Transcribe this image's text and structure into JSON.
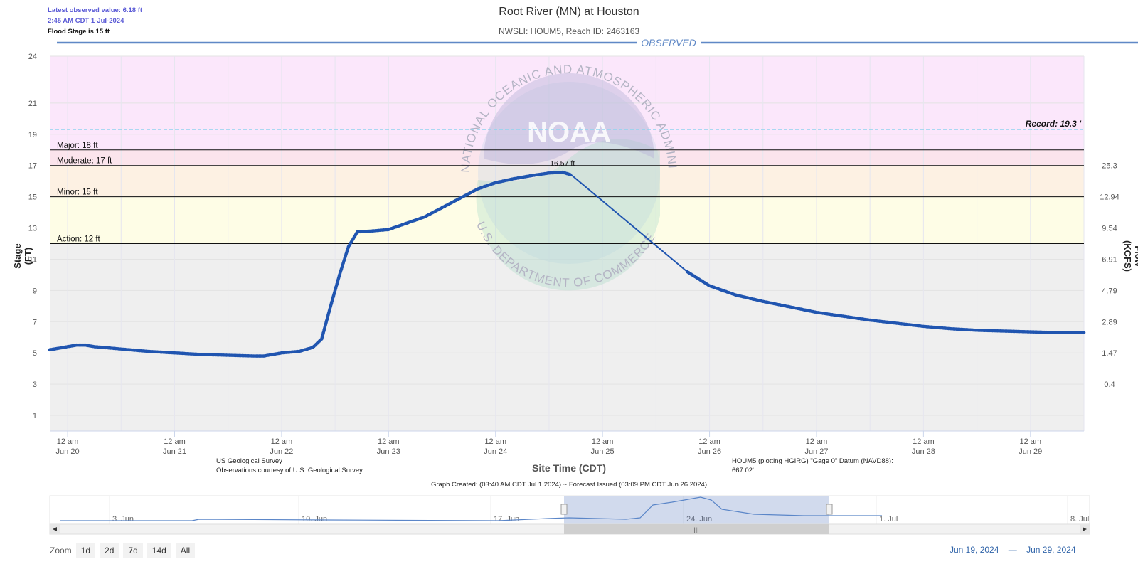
{
  "header": {
    "latest_value": "Latest observed value: 6.18 ft",
    "latest_time": "2:45 AM CDT 1-Jul-2024",
    "flood_stage": "Flood Stage is 15 ft"
  },
  "colors": {
    "line": "#2055b0",
    "observed_banner": "#5f88c6",
    "record_line": "#8fd3ef",
    "band_record": "#fbe7fb",
    "band_major": "#fbe4ec",
    "band_moderate": "#fdf1e3",
    "band_minor": "#fefde6",
    "band_normal": "#efefef"
  },
  "chart_data": {
    "type": "line",
    "title": "Root River (MN) at Houston",
    "subtitle": "NWSLI: HOUM5, Reach ID: 2463163",
    "banner": "OBSERVED",
    "xlabel": "Site Time (CDT)",
    "ylabel": "Stage (FT)",
    "y2label": "Flow (KCFS)",
    "ylim": [
      0,
      24
    ],
    "xlim": [
      "2024-06-19T20:00",
      "2024-06-29T12:00"
    ],
    "y_ticks": [
      "1",
      "3",
      "5",
      "7",
      "9",
      "11",
      "13",
      "15",
      "17",
      "19",
      "21",
      "24"
    ],
    "y_tick_values": [
      1,
      3,
      5,
      7,
      9,
      11,
      13,
      15,
      17,
      19,
      21,
      24
    ],
    "y2_ticks": [
      {
        "label": "0.4",
        "stage": 3
      },
      {
        "label": "1.47",
        "stage": 5
      },
      {
        "label": "2.89",
        "stage": 7
      },
      {
        "label": "4.79",
        "stage": 9
      },
      {
        "label": "6.91",
        "stage": 11
      },
      {
        "label": "9.54",
        "stage": 13
      },
      {
        "label": "12.94",
        "stage": 15
      },
      {
        "label": "25.3",
        "stage": 17
      }
    ],
    "x_ticks": [
      {
        "time": "2024-06-20T00:00",
        "line1": "12 am",
        "line2": "Jun 20"
      },
      {
        "time": "2024-06-21T00:00",
        "line1": "12 am",
        "line2": "Jun 21"
      },
      {
        "time": "2024-06-22T00:00",
        "line1": "12 am",
        "line2": "Jun 22"
      },
      {
        "time": "2024-06-23T00:00",
        "line1": "12 am",
        "line2": "Jun 23"
      },
      {
        "time": "2024-06-24T00:00",
        "line1": "12 am",
        "line2": "Jun 24"
      },
      {
        "time": "2024-06-25T00:00",
        "line1": "12 am",
        "line2": "Jun 25"
      },
      {
        "time": "2024-06-26T00:00",
        "line1": "12 am",
        "line2": "Jun 26"
      },
      {
        "time": "2024-06-27T00:00",
        "line1": "12 am",
        "line2": "Jun 27"
      },
      {
        "time": "2024-06-28T00:00",
        "line1": "12 am",
        "line2": "Jun 28"
      },
      {
        "time": "2024-06-29T00:00",
        "line1": "12 am",
        "line2": "Jun 29"
      }
    ],
    "thresholds": [
      {
        "name": "Major",
        "label": "Major: 18 ft",
        "value": 18
      },
      {
        "name": "Moderate",
        "label": "Moderate: 17 ft",
        "value": 17
      },
      {
        "name": "Minor",
        "label": "Minor: 15 ft",
        "value": 15
      },
      {
        "name": "Action",
        "label": "Action: 12 ft",
        "value": 12
      }
    ],
    "record": {
      "label": "Record: 19.3 '",
      "value": 19.3
    },
    "peak_label": "16.57 ft",
    "series": [
      {
        "name": "Observed",
        "points": [
          [
            "2024-06-19T20:00",
            5.2
          ],
          [
            "2024-06-20T00:00",
            5.4
          ],
          [
            "2024-06-20T02:00",
            5.5
          ],
          [
            "2024-06-20T04:00",
            5.5
          ],
          [
            "2024-06-20T06:00",
            5.4
          ],
          [
            "2024-06-20T10:00",
            5.3
          ],
          [
            "2024-06-20T14:00",
            5.2
          ],
          [
            "2024-06-20T18:00",
            5.1
          ],
          [
            "2024-06-21T00:00",
            5.0
          ],
          [
            "2024-06-21T06:00",
            4.9
          ],
          [
            "2024-06-21T12:00",
            4.85
          ],
          [
            "2024-06-21T18:00",
            4.8
          ],
          [
            "2024-06-21T20:00",
            4.8
          ],
          [
            "2024-06-22T00:00",
            5.0
          ],
          [
            "2024-06-22T04:00",
            5.1
          ],
          [
            "2024-06-22T07:00",
            5.35
          ],
          [
            "2024-06-22T09:00",
            5.9
          ],
          [
            "2024-06-22T11:00",
            8.0
          ],
          [
            "2024-06-22T13:00",
            10.0
          ],
          [
            "2024-06-22T15:00",
            11.8
          ],
          [
            "2024-06-22T17:00",
            12.75
          ],
          [
            "2024-06-22T20:00",
            12.8
          ],
          [
            "2024-06-23T00:00",
            12.9
          ],
          [
            "2024-06-23T04:00",
            13.3
          ],
          [
            "2024-06-23T08:00",
            13.7
          ],
          [
            "2024-06-23T12:00",
            14.3
          ],
          [
            "2024-06-23T16:00",
            14.9
          ],
          [
            "2024-06-23T20:00",
            15.5
          ],
          [
            "2024-06-24T00:00",
            15.9
          ],
          [
            "2024-06-24T04:00",
            16.15
          ],
          [
            "2024-06-24T08:00",
            16.35
          ],
          [
            "2024-06-24T12:00",
            16.52
          ],
          [
            "2024-06-24T15:00",
            16.57
          ],
          [
            "2024-06-24T17:00",
            16.4
          ],
          [
            "2024-06-25T19:00",
            10.2
          ],
          [
            "2024-06-26T00:00",
            9.3
          ],
          [
            "2024-06-26T06:00",
            8.7
          ],
          [
            "2024-06-26T12:00",
            8.3
          ],
          [
            "2024-06-26T18:00",
            7.95
          ],
          [
            "2024-06-27T00:00",
            7.6
          ],
          [
            "2024-06-27T06:00",
            7.35
          ],
          [
            "2024-06-27T12:00",
            7.1
          ],
          [
            "2024-06-27T18:00",
            6.9
          ],
          [
            "2024-06-28T00:00",
            6.7
          ],
          [
            "2024-06-28T06:00",
            6.55
          ],
          [
            "2024-06-28T12:00",
            6.45
          ],
          [
            "2024-06-28T18:00",
            6.4
          ],
          [
            "2024-06-29T00:00",
            6.35
          ],
          [
            "2024-06-29T06:00",
            6.3
          ],
          [
            "2024-06-29T12:00",
            6.3
          ]
        ]
      }
    ],
    "navigator": {
      "labels": [
        "3. Jun",
        "10. Jun",
        "17. Jun",
        "24. Jun",
        "1. Jul",
        "8. Jul"
      ]
    }
  },
  "credits": {
    "left_line1": "US Geological Survey",
    "left_line2": "Observations courtesy of U.S. Geological Survey",
    "right_line1": "HOUM5 (plotting HGIRG) \"Gage 0\" Datum (NAVD88):",
    "right_line2": "667.02'",
    "created": "Graph Created: (03:40 AM CDT Jul 1 2024) ~ Forecast Issued (03:09 PM CDT Jun 26 2024)"
  },
  "zoom": {
    "label": "Zoom",
    "buttons": [
      "1d",
      "2d",
      "7d",
      "14d",
      "All"
    ]
  },
  "range": {
    "from": "Jun 19, 2024",
    "sep": "—",
    "to": "Jun 29, 2024"
  },
  "watermark": {
    "logo": "NOAA",
    "top_text": "NATIONAL OCEANIC AND ATMOSPHERIC ADMINISTRATION",
    "bottom_text": "U.S. DEPARTMENT OF COMMERCE"
  }
}
